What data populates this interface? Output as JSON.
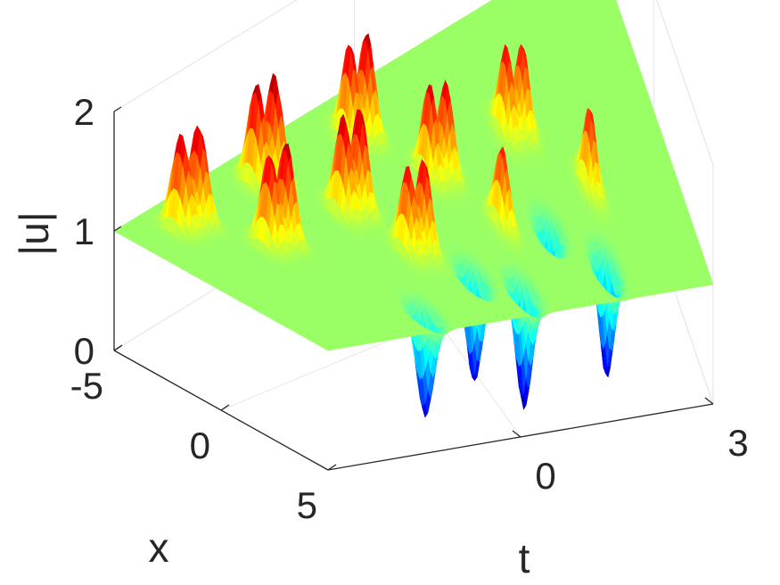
{
  "chart_data": {
    "type": "surface",
    "title": "",
    "xlabel": "t",
    "ylabel": "x",
    "zlabel": "|u|",
    "t_range": [
      -3,
      3
    ],
    "x_range": [
      -5,
      5
    ],
    "z_range": [
      0,
      2
    ],
    "ticks": {
      "t": [
        "0",
        "3"
      ],
      "x": [
        "-5",
        "0",
        "5"
      ],
      "z": [
        "0",
        "1",
        "2"
      ]
    },
    "background_level": 1.0,
    "peak_max": 1.87,
    "trough_min": 0.0,
    "colormap": "jet",
    "colormap_range": [
      0.0,
      1.9
    ],
    "grid": true,
    "box": "back walls",
    "peaks": [
      {
        "t": -2.55,
        "x": -3.5,
        "value": 1.8
      },
      {
        "t": -2.35,
        "x": -3.4,
        "value": 1.82
      },
      {
        "t": -2.05,
        "x": -1.0,
        "value": 1.78
      },
      {
        "t": -1.85,
        "x": -0.9,
        "value": 1.84
      },
      {
        "t": -1.55,
        "x": -3.6,
        "value": 1.85
      },
      {
        "t": -1.35,
        "x": -3.5,
        "value": 1.87
      },
      {
        "t": -1.05,
        "x": -1.0,
        "value": 1.82
      },
      {
        "t": -0.85,
        "x": -0.9,
        "value": 1.85
      },
      {
        "t": -0.75,
        "x": 1.4,
        "value": 1.72
      },
      {
        "t": -0.55,
        "x": 1.5,
        "value": 1.76
      },
      {
        "t": -0.4,
        "x": -3.4,
        "value": 1.8
      },
      {
        "t": -0.2,
        "x": -3.3,
        "value": 1.84
      },
      {
        "t": 0.1,
        "x": -0.9,
        "value": 1.78
      },
      {
        "t": 0.3,
        "x": -0.8,
        "value": 1.76
      },
      {
        "t": 0.55,
        "x": 1.6,
        "value": 1.66
      },
      {
        "t": 1.2,
        "x": -1.2,
        "value": 1.72
      },
      {
        "t": 1.4,
        "x": -1.1,
        "value": 1.7
      },
      {
        "t": 1.85,
        "x": 1.4,
        "value": 1.68
      }
    ],
    "troughs": [
      {
        "t": -1.2,
        "x": 4.0,
        "value": 0.12
      },
      {
        "t": -0.2,
        "x": 3.0,
        "value": 0.1
      },
      {
        "t": 0.3,
        "x": 4.0,
        "value": 0.0
      },
      {
        "t": 1.1,
        "x": 2.2,
        "value": 0.35
      },
      {
        "t": 1.6,
        "x": 3.8,
        "value": 0.05
      }
    ]
  }
}
